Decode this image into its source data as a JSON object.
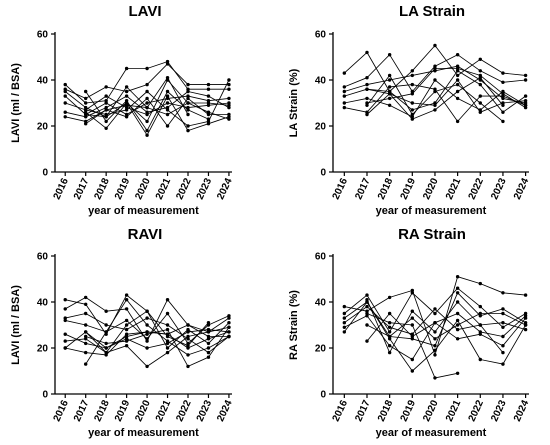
{
  "chart_data": [
    {
      "type": "line",
      "title": "LAVI",
      "xlabel": "year of measurement",
      "ylabel": "LAVI (ml / BSA)",
      "ylim": [
        0,
        60
      ],
      "yticks": [
        0,
        20,
        40,
        60
      ],
      "categories": [
        "2016",
        "2017",
        "2018",
        "2019",
        "2020",
        "2021",
        "2022",
        "2023",
        "2024"
      ],
      "line_color": "#000000",
      "series": [
        {
          "values": [
            38,
            30,
            31,
            45,
            45,
            48,
            36,
            36,
            36
          ]
        },
        {
          "values": [
            36,
            32,
            37,
            35,
            38,
            47,
            38,
            38,
            38
          ]
        },
        {
          "values": [
            35,
            28,
            24,
            30,
            22,
            40,
            30,
            30,
            29
          ]
        },
        {
          "values": [
            33,
            25,
            30,
            25,
            30,
            32,
            33,
            31,
            32
          ]
        },
        {
          "values": [
            30,
            27,
            33,
            28,
            25,
            30,
            28,
            29,
            30
          ]
        },
        {
          "values": [
            26,
            24,
            28,
            33,
            26,
            28,
            35,
            33,
            28
          ]
        },
        {
          "values": [
            24,
            22,
            27,
            29,
            28,
            25,
            30,
            26,
            23
          ]
        },
        {
          "values": [
            null,
            27,
            25,
            27,
            35,
            27,
            20,
            22,
            40
          ]
        },
        {
          "values": [
            null,
            26,
            19,
            30,
            16,
            33,
            18,
            21,
            24
          ]
        },
        {
          "values": [
            null,
            21,
            27,
            24,
            32,
            20,
            32,
            25,
            25
          ]
        },
        {
          "values": [
            null,
            35,
            22,
            31,
            18,
            35,
            27,
            23,
            null
          ]
        },
        {
          "values": [
            null,
            25,
            24,
            37,
            28,
            41,
            25,
            null,
            null
          ]
        }
      ]
    },
    {
      "type": "line",
      "title": "LA Strain",
      "xlabel": "year of measurement",
      "ylabel": "LA Strain (%)",
      "ylim": [
        0,
        60
      ],
      "yticks": [
        0,
        20,
        40,
        60
      ],
      "categories": [
        "2016",
        "2017",
        "2018",
        "2019",
        "2020",
        "2021",
        "2022",
        "2023",
        "2024"
      ],
      "line_color": "#000000",
      "series": [
        {
          "values": [
            43,
            52,
            35,
            44,
            55,
            42,
            49,
            43,
            42
          ]
        },
        {
          "values": [
            37,
            41,
            51,
            35,
            46,
            51,
            44,
            39,
            40
          ]
        },
        {
          "values": [
            35,
            38,
            40,
            42,
            44,
            46,
            40,
            32,
            30
          ]
        },
        {
          "values": [
            33,
            36,
            35,
            27,
            30,
            44,
            38,
            26,
            33
          ]
        },
        {
          "values": [
            30,
            32,
            29,
            24,
            40,
            32,
            27,
            35,
            29
          ]
        },
        {
          "values": [
            28,
            26,
            37,
            38,
            36,
            22,
            33,
            33,
            29
          ]
        },
        {
          "values": [
            null,
            29,
            42,
            25,
            35,
            38,
            30,
            22,
            null
          ]
        },
        {
          "values": [
            null,
            25,
            34,
            30,
            29,
            40,
            26,
            30,
            31
          ]
        },
        {
          "values": [
            null,
            36,
            34,
            23,
            27,
            35,
            41,
            29,
            null
          ]
        },
        {
          "values": [
            null,
            30,
            32,
            34,
            45,
            45,
            42,
            34,
            28
          ]
        }
      ]
    },
    {
      "type": "line",
      "title": "RAVI",
      "xlabel": "year of measurement",
      "ylabel": "LAVI (ml / BSA)",
      "ylim": [
        0,
        60
      ],
      "yticks": [
        0,
        20,
        40,
        60
      ],
      "categories": [
        "2016",
        "2017",
        "2018",
        "2019",
        "2020",
        "2021",
        "2022",
        "2023",
        "2024"
      ],
      "line_color": "#000000",
      "series": [
        {
          "values": [
            41,
            39,
            26,
            43,
            36,
            20,
            28,
            22,
            31
          ]
        },
        {
          "values": [
            37,
            42,
            36,
            37,
            23,
            41,
            30,
            27,
            33
          ]
        },
        {
          "values": [
            33,
            35,
            30,
            28,
            33,
            30,
            24,
            18,
            25
          ]
        },
        {
          "values": [
            32,
            30,
            27,
            32,
            24,
            35,
            22,
            30,
            34
          ]
        },
        {
          "values": [
            26,
            22,
            20,
            25,
            27,
            26,
            20,
            24,
            27
          ]
        },
        {
          "values": [
            23,
            24,
            18,
            21,
            12,
            18,
            25,
            27,
            29
          ]
        },
        {
          "values": [
            20,
            18,
            17,
            26,
            27,
            26,
            30,
            25,
            25
          ]
        },
        {
          "values": [
            null,
            13,
            27,
            41,
            30,
            23,
            17,
            20,
            25
          ]
        },
        {
          "values": [
            null,
            25,
            22,
            23,
            26,
            28,
            12,
            16,
            29
          ]
        },
        {
          "values": [
            null,
            27,
            20,
            24,
            20,
            22,
            27,
            28,
            27
          ]
        },
        {
          "values": [
            20,
            27,
            18,
            30,
            36,
            25,
            21,
            31,
            null
          ]
        }
      ]
    },
    {
      "type": "line",
      "title": "RA Strain",
      "xlabel": "year of measurement",
      "ylabel": "RA Strain (%)",
      "ylim": [
        0,
        60
      ],
      "yticks": [
        0,
        20,
        40,
        60
      ],
      "categories": [
        "2016",
        "2017",
        "2018",
        "2019",
        "2020",
        "2021",
        "2022",
        "2023",
        "2024"
      ],
      "line_color": "#000000",
      "series": [
        {
          "values": [
            38,
            36,
            42,
            45,
            17,
            51,
            48,
            44,
            43
          ]
        },
        {
          "values": [
            35,
            43,
            27,
            44,
            35,
            46,
            38,
            29,
            35
          ]
        },
        {
          "values": [
            33,
            40,
            25,
            33,
            24,
            30,
            35,
            35,
            30
          ]
        },
        {
          "values": [
            31,
            38,
            29,
            26,
            37,
            28,
            30,
            31,
            28
          ]
        },
        {
          "values": [
            29,
            34,
            21,
            15,
            31,
            35,
            27,
            25,
            34
          ]
        },
        {
          "values": [
            27,
            40,
            24,
            10,
            19,
            32,
            15,
            13,
            30
          ]
        },
        {
          "values": [
            null,
            35,
            31,
            30,
            7,
            9,
            null,
            null,
            null
          ]
        },
        {
          "values": [
            null,
            23,
            35,
            25,
            31,
            24,
            26,
            21,
            33
          ]
        },
        {
          "values": [
            null,
            41,
            18,
            36,
            27,
            40,
            30,
            18,
            null
          ]
        },
        {
          "values": [
            null,
            30,
            25,
            24,
            21,
            44,
            34,
            37,
            31
          ]
        }
      ]
    }
  ]
}
